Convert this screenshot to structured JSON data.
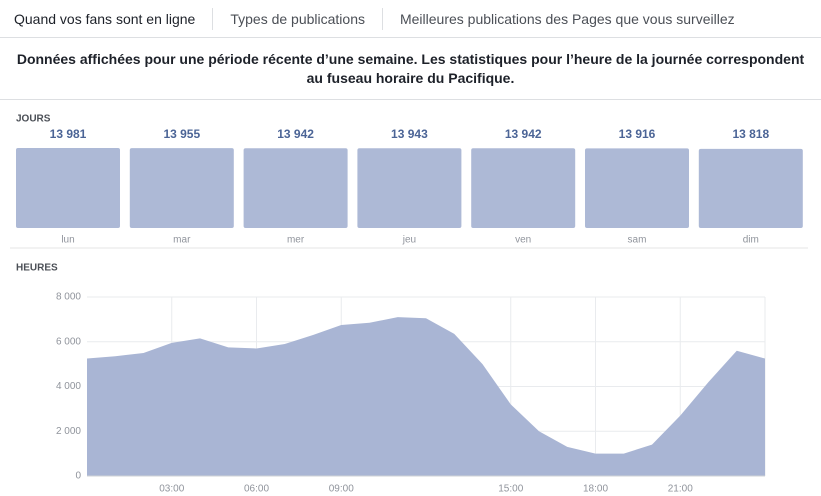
{
  "tabs": [
    "Quand vos fans sont en ligne",
    "Types de publications",
    "Meilleures publications des Pages que vous surveillez"
  ],
  "notice": "Données affichées pour une période récente d’une semaine. Les statistiques pour l’heure de la journée correspondent au fuseau horaire du Pacifique.",
  "chart_data": [
    {
      "type": "bar",
      "title": "JOURS",
      "categories": [
        "lun",
        "mar",
        "mer",
        "jeu",
        "ven",
        "sam",
        "dim"
      ],
      "values": [
        13981,
        13955,
        13942,
        13943,
        13942,
        13916,
        13818
      ],
      "value_labels": [
        "13 981",
        "13 955",
        "13 942",
        "13 943",
        "13 942",
        "13 916",
        "13 818"
      ],
      "color": "#adb9d6"
    },
    {
      "type": "area",
      "title": "HEURES",
      "x": [
        0,
        1,
        2,
        3,
        4,
        5,
        6,
        7,
        8,
        9,
        10,
        11,
        12,
        13,
        14,
        15,
        16,
        17,
        18,
        19,
        20,
        21,
        22,
        23,
        24
      ],
      "values": [
        5250,
        5350,
        5500,
        5950,
        6150,
        5750,
        5700,
        5900,
        6300,
        6750,
        6850,
        7100,
        7050,
        6350,
        5000,
        3200,
        2000,
        1300,
        1000,
        1000,
        1400,
        2700,
        4200,
        5600,
        5250
      ],
      "color": "#a9b5d4",
      "xlim": [
        0,
        24
      ],
      "xticks": [
        {
          "value": 3,
          "label": "03:00"
        },
        {
          "value": 6,
          "label": "06:00"
        },
        {
          "value": 9,
          "label": "09:00"
        },
        {
          "value": 15,
          "label": "15:00"
        },
        {
          "value": 18,
          "label": "18:00"
        },
        {
          "value": 21,
          "label": "21:00"
        }
      ],
      "ylim": [
        0,
        8000
      ],
      "yticks": [
        0,
        {
          "value": 2000,
          "label": "2 000"
        },
        {
          "value": 4000,
          "label": "4 000"
        },
        {
          "value": 6000,
          "label": "6 000"
        },
        {
          "value": 8000,
          "label": "8 000"
        }
      ],
      "grid": true
    }
  ]
}
